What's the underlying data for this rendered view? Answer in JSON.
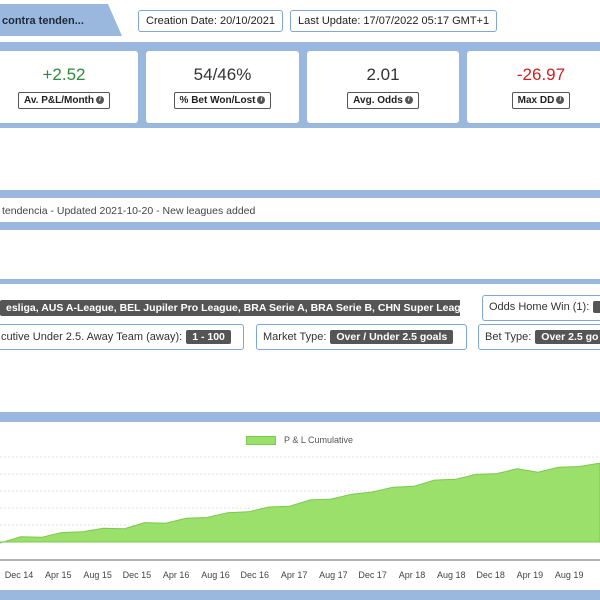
{
  "header": {
    "title": "contra tenden...",
    "creation_date": "Creation Date: 20/10/2021",
    "last_update": "Last Update: 17/07/2022 05:17 GMT+1"
  },
  "stats": [
    {
      "value": "+2.52",
      "label": "Av. P&L/Month",
      "color": "#2e8b3a"
    },
    {
      "value": "54/46%",
      "label": "% Bet Won/Lost",
      "color": "#333333"
    },
    {
      "value": "2.01",
      "label": "Avg. Odds",
      "color": "#333333"
    },
    {
      "value": "-26.97",
      "label": "Max DD",
      "color": "#d01f1f"
    }
  ],
  "note": "tendencia - Updated 2021-10-20 - New leagues added",
  "filters": {
    "leagues": "esliga, AUS A-League, BEL Jupiler Pro League, BRA Serie A, BRA Serie B, CHN Super League ...",
    "odds_home_win_label": "Odds Home Win (1):",
    "consecutive_label": "cutive Under 2.5. Away Team (away):",
    "consecutive_value": "1 - 100",
    "market_type_label": "Market Type:",
    "market_type_value": "Over / Under 2.5 goals",
    "bet_type_label": "Bet Type:",
    "bet_type_value": "Over 2.5 go"
  },
  "chart_data": {
    "type": "area",
    "series": [
      {
        "name": "P & L Cumulative",
        "color": "#9ae06a",
        "values": [
          0,
          3,
          4,
          6,
          8,
          9,
          10,
          13,
          14,
          16,
          18,
          20,
          22,
          24,
          26,
          29,
          31,
          33,
          36,
          38,
          40,
          43,
          45,
          47,
          49,
          51,
          50,
          52,
          54,
          55
        ]
      }
    ],
    "x_ticks": [
      "Dec 14",
      "Apr 15",
      "Aug 15",
      "Dec 15",
      "Apr 16",
      "Aug 16",
      "Dec 16",
      "Apr 17",
      "Aug 17",
      "Dec 17",
      "Apr 18",
      "Aug 18",
      "Dec 18",
      "Apr 19",
      "Aug 19"
    ]
  }
}
